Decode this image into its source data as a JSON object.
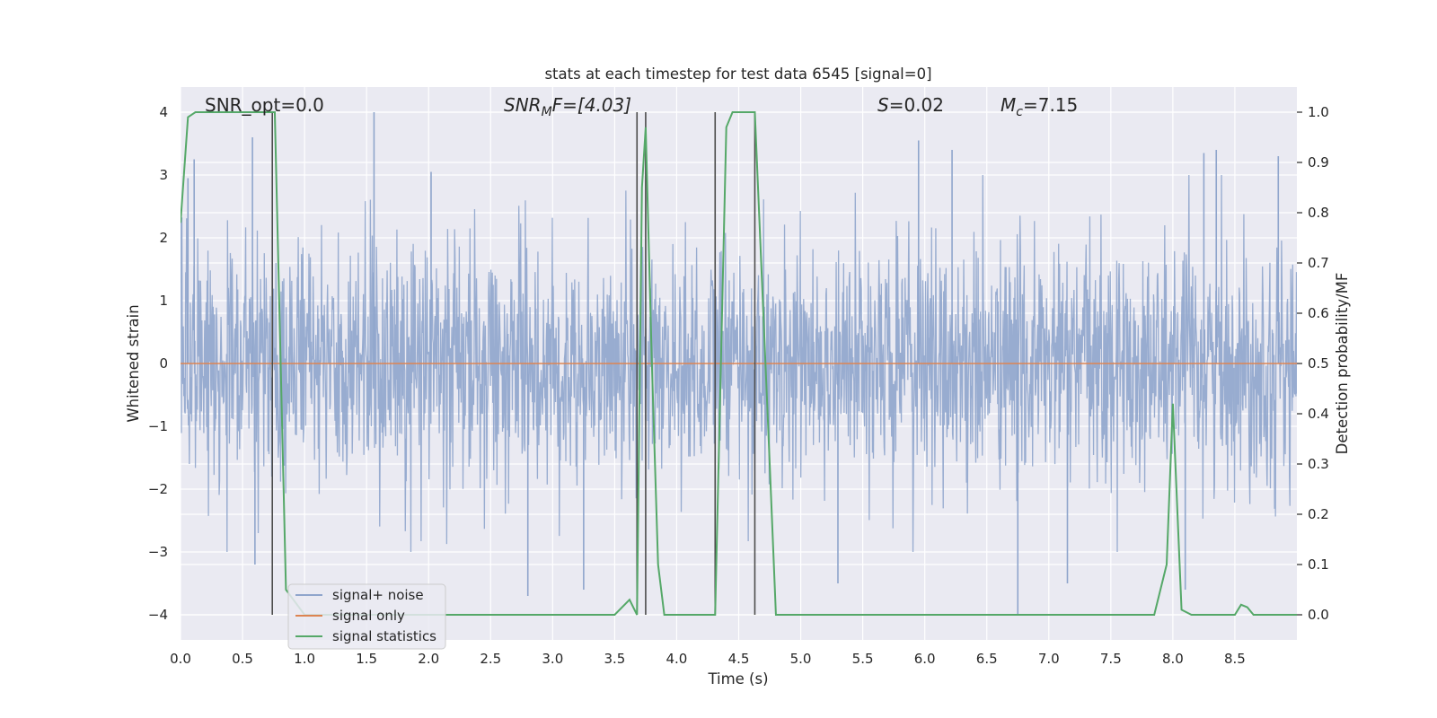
{
  "chart_data": {
    "type": "line",
    "title": "stats at each timestep for test data 6545 [signal=0]",
    "xlabel": "Time (s)",
    "ylabel": "Whitened strain",
    "ylabel_right": "Detection probability/MF",
    "xlim": [
      0.0,
      9.0
    ],
    "ylim": [
      -4.4,
      4.4
    ],
    "ylim_right": [
      -0.05,
      1.05
    ],
    "xticks": [
      "0.0",
      "0.5",
      "1.0",
      "1.5",
      "2.0",
      "2.5",
      "3.0",
      "3.5",
      "4.0",
      "4.5",
      "5.0",
      "5.5",
      "6.0",
      "6.5",
      "7.0",
      "7.5",
      "8.0",
      "8.5"
    ],
    "xtick_values": [
      0,
      0.5,
      1,
      1.5,
      2,
      2.5,
      3,
      3.5,
      4,
      4.5,
      5,
      5.5,
      6,
      6.5,
      7,
      7.5,
      8,
      8.5
    ],
    "yticks_left": [
      "4",
      "3",
      "2",
      "1",
      "0",
      "−1",
      "−2",
      "−3",
      "−4"
    ],
    "ytick_values_left": [
      4,
      3,
      2,
      1,
      0,
      -1,
      -2,
      -3,
      -4
    ],
    "yticks_right": [
      "1.0",
      "0.9",
      "0.8",
      "0.7",
      "0.6",
      "0.5",
      "0.4",
      "0.3",
      "0.2",
      "0.1",
      "0.0"
    ],
    "ytick_values_right": [
      1.0,
      0.9,
      0.8,
      0.7,
      0.6,
      0.5,
      0.4,
      0.3,
      0.2,
      0.1,
      0.0
    ],
    "grid": true,
    "legend_position": "lower-left",
    "annotations": {
      "snr_opt": "SNR_opt=0.0",
      "snr_mf_main": "SNR",
      "snr_mf_sub": "M",
      "snr_mf_rest": "F=[4.03]",
      "s_main": "S",
      "s_rest": "=0.02",
      "mc_main": "M",
      "mc_sub": "c",
      "mc_rest": "=7.15"
    },
    "series": [
      {
        "name": "signal+ noise",
        "color": "#8fa5cc",
        "axis": "left",
        "style": "dense noise, approx. envelope ±2.3 with spikes to ±4",
        "noise_peaks": [
          {
            "x": 0.11,
            "y": 3.25
          },
          {
            "x": 0.06,
            "y": 2.95
          },
          {
            "x": 0.58,
            "y": 3.6
          },
          {
            "x": 1.56,
            "y": 4.0
          },
          {
            "x": 2.02,
            "y": 3.05
          },
          {
            "x": 5.95,
            "y": 3.55
          },
          {
            "x": 6.22,
            "y": 3.4
          },
          {
            "x": 8.25,
            "y": 3.35
          },
          {
            "x": 8.35,
            "y": 3.4
          },
          {
            "x": 8.85,
            "y": 3.3
          },
          {
            "x": 2.8,
            "y": -3.7
          },
          {
            "x": 3.25,
            "y": -3.6
          },
          {
            "x": 6.75,
            "y": -4.0
          },
          {
            "x": 7.15,
            "y": -3.5
          },
          {
            "x": 5.3,
            "y": -3.5
          },
          {
            "x": 0.6,
            "y": -3.2
          },
          {
            "x": 8.1,
            "y": -3.6
          }
        ]
      },
      {
        "name": "signal only",
        "color": "#dd8452",
        "axis": "left",
        "x": [
          0,
          9
        ],
        "y": [
          0,
          0
        ]
      },
      {
        "name": "signal statistics",
        "color": "#55a868",
        "axis": "right",
        "x": [
          0.0,
          0.06,
          0.12,
          0.3,
          0.5,
          0.62,
          0.74,
          0.76,
          0.85,
          1.0,
          1.5,
          2.0,
          2.5,
          3.0,
          3.5,
          3.62,
          3.68,
          3.72,
          3.75,
          3.8,
          3.85,
          3.9,
          4.0,
          4.2,
          4.3,
          4.31,
          4.4,
          4.45,
          4.5,
          4.6,
          4.63,
          4.75,
          4.8,
          5.0,
          6.0,
          6.6,
          6.7,
          7.0,
          7.5,
          7.85,
          7.95,
          8.0,
          8.07,
          8.15,
          8.5,
          8.55,
          8.6,
          8.65,
          8.75,
          9.0
        ],
        "y": [
          0.78,
          0.99,
          1.0,
          1.0,
          1.0,
          1.0,
          1.0,
          1.0,
          0.05,
          0.0,
          0.0,
          0.0,
          0.0,
          0.0,
          0.0,
          0.03,
          0.0,
          0.85,
          0.97,
          0.5,
          0.1,
          0.0,
          0.0,
          0.0,
          0.0,
          0.0,
          0.97,
          1.0,
          1.0,
          1.0,
          1.0,
          0.3,
          0.0,
          0.0,
          0.0,
          0.0,
          0.0,
          0.0,
          0.0,
          0.0,
          0.1,
          0.42,
          0.01,
          0.0,
          0.0,
          0.02,
          0.015,
          0.0,
          0.0,
          0.0
        ]
      }
    ],
    "vertical_lines": {
      "color": "#4c4c4c",
      "x": [
        0.74,
        3.68,
        3.75,
        4.31,
        4.63
      ]
    }
  }
}
